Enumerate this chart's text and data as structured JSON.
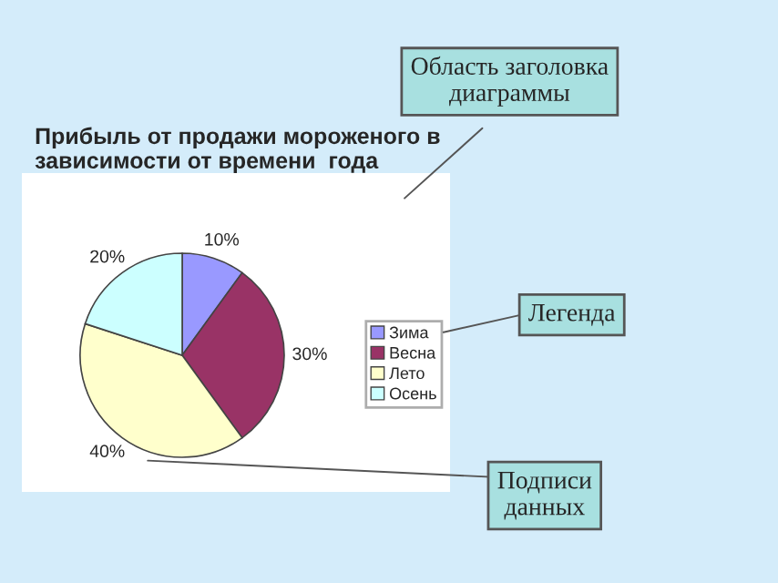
{
  "chart_data": {
    "type": "pie",
    "title": "Прибыль от продажи мороженого в\nзависимости от времени  года",
    "categories": [
      "Зима",
      "Весна",
      "Лето",
      "Осень"
    ],
    "values": [
      10,
      30,
      40,
      20
    ],
    "value_labels": [
      "10%",
      "30%",
      "40%",
      "20%"
    ],
    "colors": [
      "#9999ff",
      "#993366",
      "#ffffcc",
      "#ccffff"
    ],
    "legend": "right",
    "annotations": [
      "Область заголовка\nдиаграммы",
      "Легенда",
      "Подписи\nданных"
    ]
  }
}
